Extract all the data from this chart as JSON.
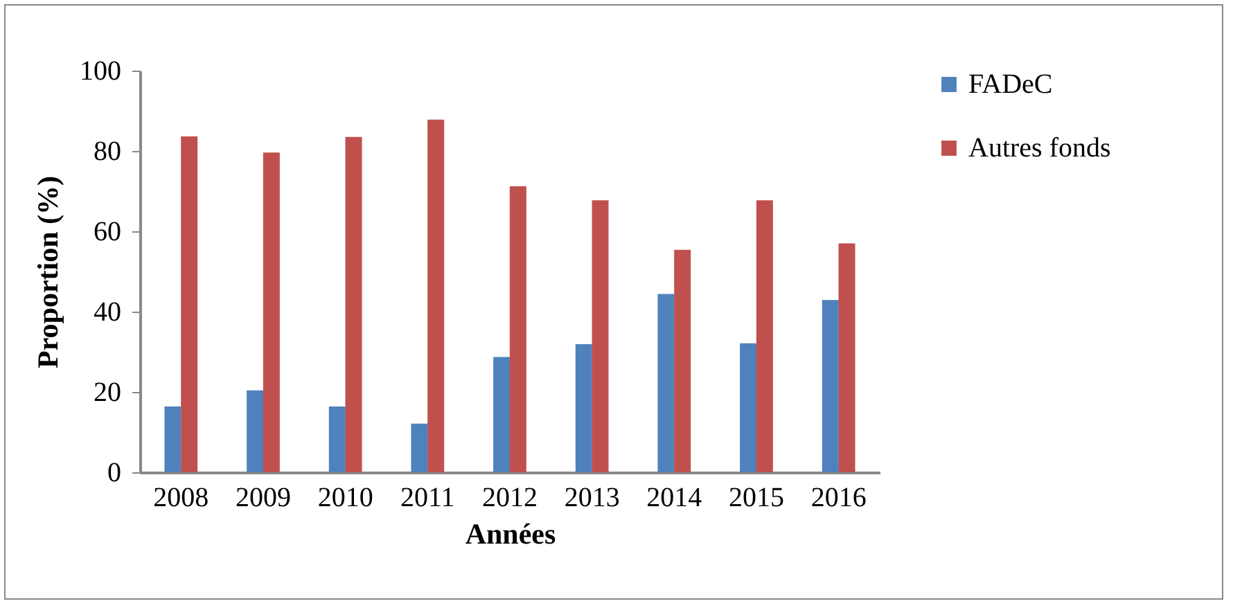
{
  "chart_data": {
    "type": "bar",
    "xlabel": "Années",
    "ylabel": "Proportion (%)",
    "categories": [
      "2008",
      "2009",
      "2010",
      "2011",
      "2012",
      "2013",
      "2014",
      "2015",
      "2016"
    ],
    "series": [
      {
        "name": "FADeC",
        "color": "#4f81bd",
        "values": [
          16.4,
          20.4,
          16.4,
          12.1,
          28.7,
          31.9,
          44.4,
          32.1,
          42.9
        ]
      },
      {
        "name": "Autres fonds",
        "color": "#c0504d",
        "values": [
          83.6,
          79.6,
          83.5,
          87.8,
          71.2,
          67.7,
          55.4,
          67.7,
          57.0
        ]
      }
    ],
    "ylim": [
      0,
      100
    ],
    "yticks": [
      0,
      20,
      40,
      60,
      80,
      100
    ],
    "grid": false,
    "legend": "right"
  }
}
